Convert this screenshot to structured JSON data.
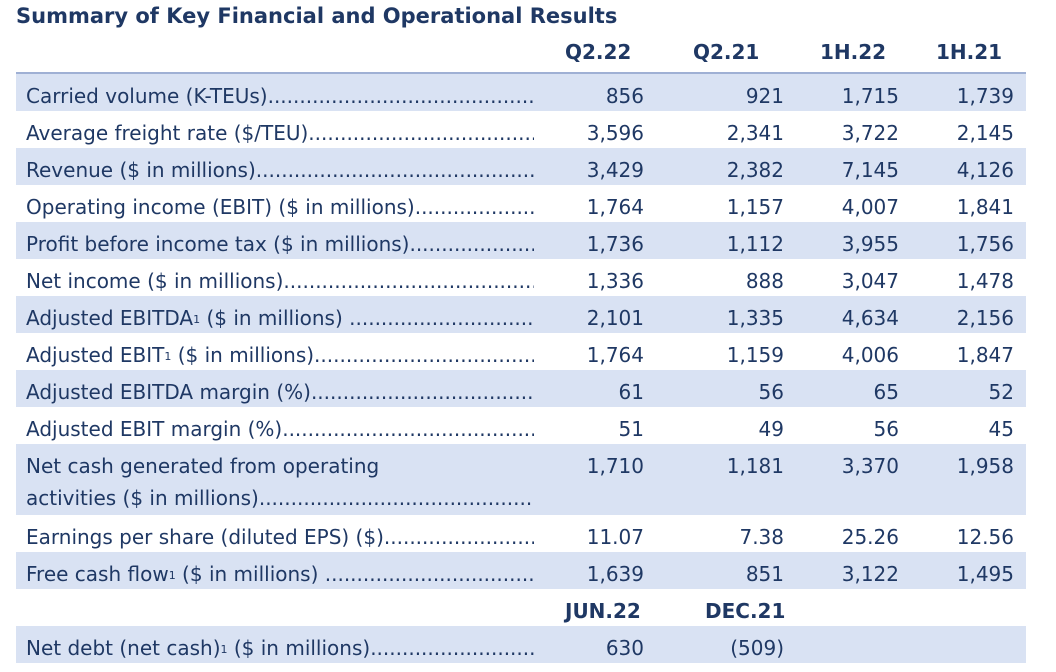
{
  "title": "Summary of Key Financial and Operational Results",
  "columns": [
    "Q2.22",
    "Q2.21",
    "1H.22",
    "1H.21"
  ],
  "rows": [
    {
      "label": "Carried volume (K-TEUs) ",
      "sup": "",
      "suffix": "",
      "values": [
        "856",
        "921",
        "1,715",
        "1,739"
      ]
    },
    {
      "label": "Average freight rate ($/TEU)",
      "sup": "",
      "suffix": "",
      "values": [
        "3,596",
        "2,341",
        "3,722",
        "2,145"
      ]
    },
    {
      "label": "Revenue ($ in millions)",
      "sup": "",
      "suffix": "",
      "values": [
        "3,429",
        "2,382",
        "7,145",
        "4,126"
      ]
    },
    {
      "label": "Operating income (EBIT) ($ in millions) ",
      "sup": "",
      "suffix": "",
      "values": [
        "1,764",
        "1,157",
        "4,007",
        "1,841"
      ]
    },
    {
      "label": "Profit before income tax ($ in millions) ",
      "sup": "",
      "suffix": "",
      "values": [
        "1,736",
        "1,112",
        "3,955",
        "1,756"
      ]
    },
    {
      "label": "Net income ($ in millions)",
      "sup": "",
      "suffix": "",
      "values": [
        "1,336",
        "888",
        "3,047",
        "1,478"
      ]
    },
    {
      "label": "Adjusted EBITDA",
      "sup": "1",
      "suffix": " ($ in millions) ",
      "values": [
        "2,101",
        "1,335",
        "4,634",
        "2,156"
      ]
    },
    {
      "label": "Adjusted EBIT",
      "sup": "1",
      "suffix": " ($ in millions)",
      "values": [
        "1,764",
        "1,159",
        "4,006",
        "1,847"
      ]
    },
    {
      "label": "Adjusted EBITDA margin (%)",
      "sup": "",
      "suffix": "",
      "values": [
        "61",
        "56",
        "65",
        "52"
      ]
    },
    {
      "label": "Adjusted EBIT margin (%)",
      "sup": "",
      "suffix": "",
      "values": [
        "51",
        "49",
        "56",
        "45"
      ]
    },
    {
      "label": "Net cash generated from operating",
      "label2": "activities ($ in millions)",
      "sup": "",
      "suffix": "",
      "values": [
        "1,710",
        "1,181",
        "3,370",
        "1,958"
      ]
    },
    {
      "label": "Earnings per share (diluted EPS) ($)",
      "sup": "",
      "suffix": "",
      "values": [
        "11.07",
        "7.38",
        "25.26",
        "12.56"
      ]
    },
    {
      "label": "Free cash flow",
      "sup": "1",
      "suffix": " ($ in millions) ",
      "values": [
        "1,639",
        "851",
        "3,122",
        "1,495"
      ]
    }
  ],
  "balance_columns": [
    "JUN.22",
    "DEC.21"
  ],
  "balance_row": {
    "label": "Net debt (net cash)",
    "sup": "1",
    "suffix": " ($ in millions)",
    "values": [
      "630",
      "(509)"
    ]
  }
}
